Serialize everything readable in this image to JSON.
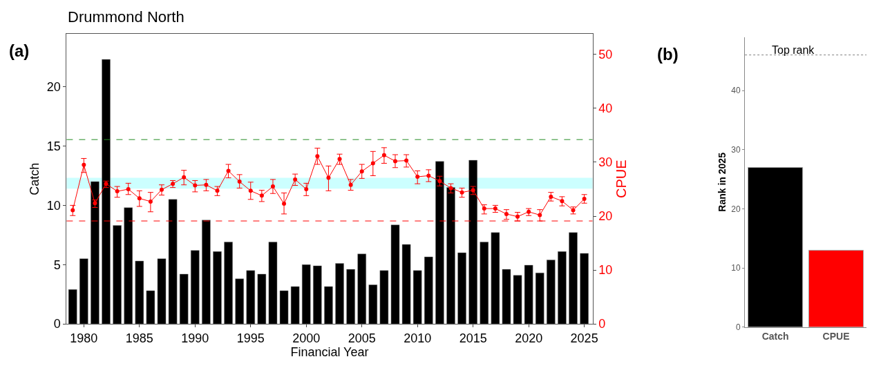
{
  "chart_data": [
    {
      "type": "bar",
      "title": "Drummond North",
      "xlabel": "Financial Year",
      "ylabel": "Catch",
      "y2label": "CPUE",
      "annotations": [
        "(a)"
      ],
      "x": [
        1979,
        1980,
        1981,
        1982,
        1983,
        1984,
        1985,
        1986,
        1987,
        1988,
        1989,
        1990,
        1991,
        1992,
        1993,
        1994,
        1995,
        1996,
        1997,
        1998,
        1999,
        2000,
        2001,
        2002,
        2003,
        2004,
        2005,
        2006,
        2007,
        2008,
        2009,
        2010,
        2011,
        2012,
        2013,
        2014,
        2015,
        2016,
        2017,
        2018,
        2019,
        2020,
        2021,
        2022,
        2023,
        2024,
        2025
      ],
      "series": [
        {
          "type": "bar",
          "color": "#000000",
          "values": [
            2.9,
            5.5,
            12.0,
            22.3,
            8.3,
            9.8,
            5.3,
            2.8,
            5.5,
            10.5,
            4.2,
            6.2,
            8.75,
            6.1,
            6.9,
            3.8,
            4.5,
            4.2,
            6.9,
            2.8,
            3.15,
            5.0,
            4.9,
            3.15,
            5.1,
            4.6,
            5.9,
            3.3,
            4.5,
            8.35,
            6.7,
            4.5,
            5.65,
            13.7,
            11.5,
            6.0,
            13.8,
            6.9,
            7.7,
            4.6,
            4.1,
            4.95,
            4.3,
            5.4,
            6.1,
            7.7,
            5.95
          ]
        },
        {
          "type": "line",
          "axis": "y2",
          "color": "#ff0000",
          "marker": "circle",
          "line_style": "solid",
          "values": [
            21.1,
            29.5,
            22.4,
            26.0,
            24.6,
            25.0,
            23.3,
            22.7,
            24.9,
            26.0,
            27.2,
            25.7,
            25.8,
            24.7,
            28.4,
            26.4,
            24.7,
            23.8,
            25.5,
            22.3,
            26.8,
            25.0,
            31.1,
            27.1,
            30.6,
            25.8,
            28.3,
            29.8,
            31.3,
            30.2,
            30.3,
            27.3,
            27.5,
            26.5,
            25.2,
            24.4,
            24.8,
            21.4,
            21.4,
            20.4,
            19.9,
            20.8,
            20.2,
            23.6,
            22.8,
            21.1,
            23.2
          ],
          "errors": [
            [
              20.1,
              22.0
            ],
            [
              28.1,
              30.7
            ],
            [
              21.6,
              23.0
            ],
            [
              25.3,
              26.5
            ],
            [
              23.5,
              25.5
            ],
            [
              24.0,
              26.1
            ],
            [
              21.8,
              24.7
            ],
            [
              20.8,
              24.4
            ],
            [
              23.9,
              25.8
            ],
            [
              25.3,
              26.6
            ],
            [
              25.8,
              28.5
            ],
            [
              24.5,
              26.6
            ],
            [
              24.7,
              26.8
            ],
            [
              23.8,
              25.5
            ],
            [
              27.1,
              29.6
            ],
            [
              25.2,
              27.7
            ],
            [
              23.1,
              26.3
            ],
            [
              22.7,
              24.8
            ],
            [
              24.2,
              26.8
            ],
            [
              20.4,
              24.3
            ],
            [
              25.7,
              27.8
            ],
            [
              23.8,
              26.1
            ],
            [
              29.6,
              32.6
            ],
            [
              24.7,
              29.3
            ],
            [
              29.6,
              31.5
            ],
            [
              24.8,
              26.8
            ],
            [
              27.0,
              29.6
            ],
            [
              27.5,
              32.0
            ],
            [
              29.8,
              32.7
            ],
            [
              29.0,
              31.4
            ],
            [
              29.1,
              31.4
            ],
            [
              26.0,
              28.4
            ],
            [
              26.4,
              28.6
            ],
            [
              25.6,
              27.4
            ],
            [
              24.3,
              26.0
            ],
            [
              23.5,
              25.2
            ],
            [
              24.0,
              25.5
            ],
            [
              20.4,
              22.1
            ],
            [
              20.7,
              22.0
            ],
            [
              19.4,
              21.2
            ],
            [
              19.1,
              20.7
            ],
            [
              20.1,
              21.4
            ],
            [
              19.1,
              21.2
            ],
            [
              22.8,
              24.4
            ],
            [
              21.9,
              23.6
            ],
            [
              20.4,
              21.7
            ],
            [
              22.4,
              24.0
            ]
          ]
        }
      ],
      "xlim": [
        1978.45,
        2025.74
      ],
      "xticks": [
        1980,
        1985,
        1990,
        1995,
        2000,
        2005,
        2010,
        2015,
        2020,
        2025
      ],
      "ylim": [
        0,
        24.45
      ],
      "yticks": [
        0,
        5,
        10,
        15,
        20
      ],
      "y2lim": [
        0,
        53.8
      ],
      "y2ticks": [
        0,
        10,
        20,
        30,
        40,
        50
      ],
      "ref_lines": [
        {
          "axis": "y2",
          "value": 34.2,
          "color": "#228b22",
          "line_style": "dashed"
        },
        {
          "axis": "y2",
          "value": 19.1,
          "color": "#ff0000",
          "line_style": "dashed"
        }
      ],
      "bands": [
        {
          "axis": "y2",
          "from": 25.1,
          "to": 27.1,
          "color": "#ccffff"
        }
      ],
      "grid": false
    },
    {
      "type": "bar",
      "ylabel": "Rank in 2025",
      "annotations": [
        "(b)"
      ],
      "categories": [
        "Catch",
        "CPUE"
      ],
      "values": [
        27,
        13
      ],
      "colors": [
        "#000000",
        "#ff0000"
      ],
      "ylim": [
        0,
        49
      ],
      "yticks": [
        0,
        10,
        20,
        30,
        40
      ],
      "ref_lines": [
        {
          "axis": "y",
          "value": 46,
          "label": "Top rank",
          "color": "#808080",
          "line_style": "dotted"
        }
      ],
      "grid": false
    }
  ]
}
